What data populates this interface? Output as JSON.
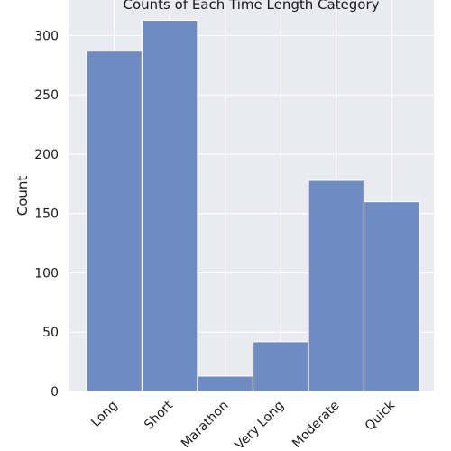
{
  "chart_data": {
    "type": "bar",
    "title": "Counts of Each Time Length Category",
    "xlabel": "",
    "ylabel": "Count",
    "categories": [
      "Long",
      "Short",
      "Marathon",
      "Very Long",
      "Moderate",
      "Quick"
    ],
    "values": [
      287,
      313,
      13,
      42,
      178,
      160
    ],
    "ylim": [
      0,
      330
    ],
    "yticks": [
      0,
      50,
      100,
      150,
      200,
      250,
      300
    ],
    "grid": true,
    "bar_color": "#6f8cc2",
    "plot_background": "#eaeaf2",
    "grid_color": "#ffffff"
  }
}
